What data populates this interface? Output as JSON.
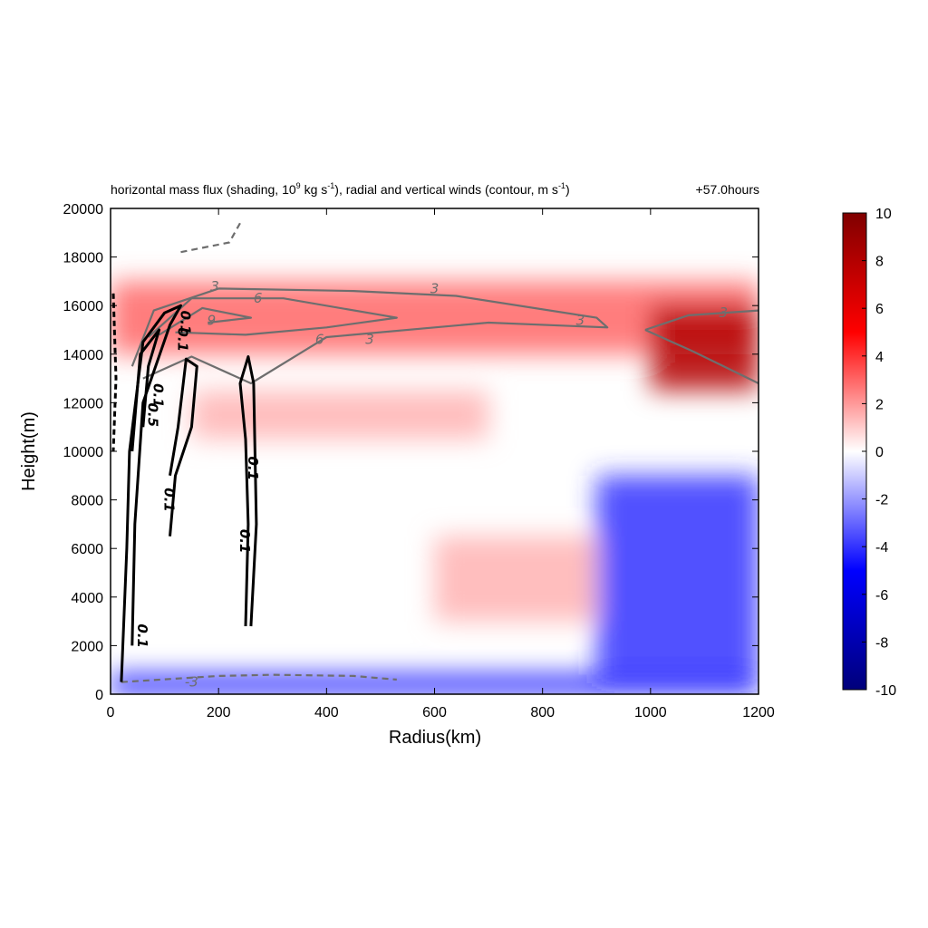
{
  "chart_data": {
    "type": "heatmap",
    "title_main": "horizontal mass flux (shading, 10",
    "title_sup1": "9",
    "title_mid": " kg s",
    "title_sup2": "-1",
    "title_mid2": "), radial and vertical winds (contour, m s",
    "title_sup3": "-1",
    "title_end": ")",
    "time_label": "+57.0hours",
    "xlabel": "Radius(km)",
    "ylabel": "Height(m)",
    "xlim": [
      0,
      1200
    ],
    "ylim": [
      0,
      20000
    ],
    "xticks": [
      "0",
      "200",
      "400",
      "600",
      "800",
      "1000",
      "1200"
    ],
    "yticks": [
      "0",
      "2000",
      "4000",
      "6000",
      "8000",
      "10000",
      "12000",
      "14000",
      "16000",
      "18000",
      "20000"
    ],
    "colorbar": {
      "range": [
        -10,
        10
      ],
      "ticks": [
        "10",
        "8",
        "6",
        "4",
        "2",
        "0",
        "-2",
        "-4",
        "-6",
        "-8",
        "-10"
      ],
      "colors": [
        "#00007a",
        "#0000ff",
        "#ffffff",
        "#ff0000",
        "#800000"
      ]
    },
    "shading_features": [
      {
        "x": [
          0,
          1200
        ],
        "y": [
          14000,
          17000
        ],
        "value": 3,
        "note": "outflow layer"
      },
      {
        "x": [
          1000,
          1200
        ],
        "y": [
          12500,
          16000
        ],
        "value": 8
      },
      {
        "x": [
          0,
          1200
        ],
        "y": [
          0,
          800
        ],
        "value": -5,
        "note": "inflow layer"
      },
      {
        "x": [
          900,
          1200
        ],
        "y": [
          800,
          9000
        ],
        "value": -4
      },
      {
        "x": [
          600,
          900
        ],
        "y": [
          3000,
          6500
        ],
        "value": 1.5
      },
      {
        "x": [
          150,
          700
        ],
        "y": [
          10500,
          12500
        ],
        "value": 1.5
      }
    ],
    "contour_labels_radial": [
      "3",
      "6",
      "9",
      "3",
      "6",
      "3",
      "3",
      "3",
      "-3"
    ],
    "contour_labels_vertical": [
      "0.1",
      "0.1",
      "0.5",
      "0.1",
      "0.1",
      "0.1",
      "0.1",
      "0.1"
    ],
    "radial_wind_contours": [
      {
        "level": 3,
        "points": [
          [
            40,
            13500
          ],
          [
            80,
            15800
          ],
          [
            200,
            16700
          ],
          [
            450,
            16600
          ],
          [
            640,
            16400
          ],
          [
            900,
            15500
          ],
          [
            920,
            15100
          ],
          [
            700,
            15300
          ],
          [
            400,
            14700
          ],
          [
            260,
            12800
          ],
          [
            150,
            13900
          ],
          [
            60,
            13000
          ]
        ]
      },
      {
        "level": 3,
        "points": [
          [
            990,
            15000
          ],
          [
            1070,
            15600
          ],
          [
            1200,
            15800
          ]
        ]
      },
      {
        "level": 3,
        "points": [
          [
            990,
            15000
          ],
          [
            1080,
            14100
          ],
          [
            1200,
            12800
          ]
        ]
      },
      {
        "level": 6,
        "points": [
          [
            70,
            14700
          ],
          [
            150,
            16300
          ],
          [
            320,
            16300
          ],
          [
            530,
            15500
          ],
          [
            400,
            15100
          ],
          [
            250,
            14800
          ],
          [
            120,
            14900
          ]
        ]
      },
      {
        "level": 9,
        "points": [
          [
            90,
            14800
          ],
          [
            170,
            15900
          ],
          [
            260,
            15500
          ],
          [
            180,
            15300
          ]
        ]
      },
      {
        "level": -3,
        "points": [
          [
            20,
            500
          ],
          [
            200,
            750
          ],
          [
            300,
            800
          ],
          [
            450,
            750
          ],
          [
            530,
            600
          ]
        ]
      },
      {
        "level": -3,
        "points": [
          [
            130,
            18200
          ],
          [
            220,
            18600
          ],
          [
            240,
            19400
          ]
        ]
      }
    ],
    "vertical_wind_contours": [
      {
        "level": 0.1,
        "points": [
          [
            20,
            500
          ],
          [
            30,
            6000
          ],
          [
            35,
            10000
          ],
          [
            60,
            14500
          ],
          [
            100,
            15700
          ],
          [
            130,
            16000
          ],
          [
            110,
            15200
          ],
          [
            60,
            12000
          ],
          [
            45,
            7000
          ],
          [
            40,
            2000
          ]
        ]
      },
      {
        "level": 0.1,
        "points": [
          [
            110,
            6500
          ],
          [
            120,
            9000
          ],
          [
            150,
            11000
          ],
          [
            160,
            13500
          ],
          [
            140,
            13800
          ],
          [
            125,
            11000
          ],
          [
            110,
            9000
          ]
        ]
      },
      {
        "level": 0.1,
        "points": [
          [
            250,
            2800
          ],
          [
            255,
            7000
          ],
          [
            250,
            10500
          ],
          [
            240,
            12800
          ],
          [
            255,
            13900
          ],
          [
            265,
            12800
          ],
          [
            270,
            7000
          ],
          [
            260,
            2800
          ]
        ]
      },
      {
        "level": 0.5,
        "points": [
          [
            40,
            10000
          ],
          [
            55,
            14000
          ],
          [
            90,
            15000
          ],
          [
            70,
            13500
          ],
          [
            60,
            11000
          ]
        ]
      },
      {
        "level": -0.1,
        "points": [
          [
            5,
            16500
          ],
          [
            10,
            13000
          ],
          [
            5,
            10000
          ]
        ]
      }
    ]
  }
}
